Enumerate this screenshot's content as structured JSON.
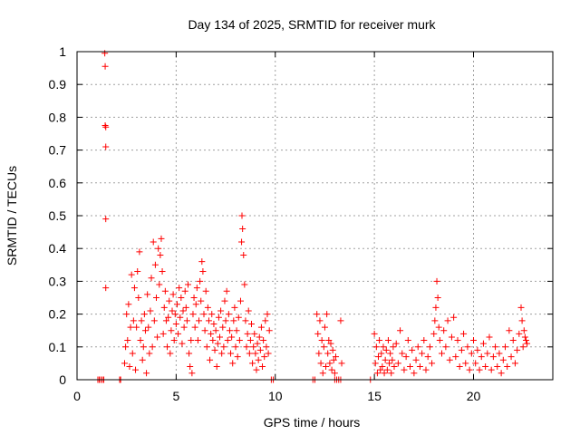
{
  "chart_data": {
    "type": "scatter",
    "title": "Day 134 of 2025, SRMTID for receiver murk",
    "xlabel": "GPS time / hours",
    "ylabel": "SRMTID / TECUs",
    "xlim": [
      0,
      24
    ],
    "ylim": [
      0,
      1
    ],
    "xticks": [
      0,
      5,
      10,
      15,
      20
    ],
    "yticks": [
      0,
      0.1,
      0.2,
      0.3,
      0.4,
      0.5,
      0.6,
      0.7,
      0.8,
      0.9,
      1
    ],
    "grid": true,
    "marker": "plus",
    "series": [
      {
        "name": "SRMTID",
        "color": "#ff0000",
        "points": [
          [
            1.05,
            0.0
          ],
          [
            1.12,
            0.0
          ],
          [
            1.2,
            0.0
          ],
          [
            1.28,
            0.0
          ],
          [
            1.35,
            0.0
          ],
          [
            1.4,
            0.995
          ],
          [
            1.42,
            0.955
          ],
          [
            1.42,
            0.775
          ],
          [
            1.45,
            0.77
          ],
          [
            1.45,
            0.71
          ],
          [
            1.45,
            0.49
          ],
          [
            1.45,
            0.28
          ],
          [
            2.15,
            0.0
          ],
          [
            2.2,
            0.0
          ],
          [
            2.4,
            0.05
          ],
          [
            2.45,
            0.1
          ],
          [
            2.5,
            0.2
          ],
          [
            2.55,
            0.12
          ],
          [
            2.6,
            0.23
          ],
          [
            2.65,
            0.04
          ],
          [
            2.7,
            0.16
          ],
          [
            2.75,
            0.32
          ],
          [
            2.8,
            0.08
          ],
          [
            2.85,
            0.18
          ],
          [
            2.9,
            0.28
          ],
          [
            2.95,
            0.03
          ],
          [
            3.0,
            0.16
          ],
          [
            3.05,
            0.33
          ],
          [
            3.1,
            0.25
          ],
          [
            3.15,
            0.39
          ],
          [
            3.2,
            0.12
          ],
          [
            3.25,
            0.18
          ],
          [
            3.3,
            0.06
          ],
          [
            3.35,
            0.1
          ],
          [
            3.4,
            0.2
          ],
          [
            3.45,
            0.15
          ],
          [
            3.5,
            0.02
          ],
          [
            3.55,
            0.26
          ],
          [
            3.6,
            0.16
          ],
          [
            3.65,
            0.08
          ],
          [
            3.7,
            0.21
          ],
          [
            3.75,
            0.31
          ],
          [
            3.8,
            0.1
          ],
          [
            3.85,
            0.42
          ],
          [
            3.9,
            0.18
          ],
          [
            3.95,
            0.35
          ],
          [
            4.0,
            0.25
          ],
          [
            4.05,
            0.13
          ],
          [
            4.1,
            0.4
          ],
          [
            4.15,
            0.29
          ],
          [
            4.2,
            0.38
          ],
          [
            4.25,
            0.43
          ],
          [
            4.3,
            0.33
          ],
          [
            4.35,
            0.14
          ],
          [
            4.4,
            0.22
          ],
          [
            4.45,
            0.27
          ],
          [
            4.5,
            0.18
          ],
          [
            4.55,
            0.1
          ],
          [
            4.6,
            0.19
          ],
          [
            4.65,
            0.24
          ],
          [
            4.7,
            0.08
          ],
          [
            4.75,
            0.15
          ],
          [
            4.8,
            0.21
          ],
          [
            4.85,
            0.26
          ],
          [
            4.9,
            0.12
          ],
          [
            4.95,
            0.2
          ],
          [
            5.0,
            0.17
          ],
          [
            5.05,
            0.23
          ],
          [
            5.1,
            0.14
          ],
          [
            5.15,
            0.28
          ],
          [
            5.2,
            0.19
          ],
          [
            5.25,
            0.25
          ],
          [
            5.3,
            0.11
          ],
          [
            5.35,
            0.21
          ],
          [
            5.4,
            0.16
          ],
          [
            5.45,
            0.27
          ],
          [
            5.5,
            0.22
          ],
          [
            5.55,
            0.18
          ],
          [
            5.6,
            0.29
          ],
          [
            5.65,
            0.08
          ],
          [
            5.7,
            0.04
          ],
          [
            5.75,
            0.12
          ],
          [
            5.8,
            0.02
          ],
          [
            5.85,
            0.2
          ],
          [
            5.9,
            0.25
          ],
          [
            5.95,
            0.16
          ],
          [
            6.0,
            0.23
          ],
          [
            6.05,
            0.28
          ],
          [
            6.1,
            0.12
          ],
          [
            6.15,
            0.18
          ],
          [
            6.2,
            0.3
          ],
          [
            6.25,
            0.24
          ],
          [
            6.3,
            0.36
          ],
          [
            6.35,
            0.33
          ],
          [
            6.4,
            0.2
          ],
          [
            6.45,
            0.15
          ],
          [
            6.5,
            0.27
          ],
          [
            6.55,
            0.1
          ],
          [
            6.6,
            0.22
          ],
          [
            6.65,
            0.18
          ],
          [
            6.7,
            0.06
          ],
          [
            6.75,
            0.14
          ],
          [
            6.8,
            0.2
          ],
          [
            6.85,
            0.12
          ],
          [
            6.9,
            0.17
          ],
          [
            6.95,
            0.09
          ],
          [
            7.0,
            0.15
          ],
          [
            7.05,
            0.04
          ],
          [
            7.1,
            0.11
          ],
          [
            7.15,
            0.19
          ],
          [
            7.2,
            0.13
          ],
          [
            7.25,
            0.21
          ],
          [
            7.3,
            0.08
          ],
          [
            7.35,
            0.16
          ],
          [
            7.4,
            0.1
          ],
          [
            7.45,
            0.24
          ],
          [
            7.5,
            0.18
          ],
          [
            7.55,
            0.27
          ],
          [
            7.6,
            0.12
          ],
          [
            7.65,
            0.2
          ],
          [
            7.7,
            0.15
          ],
          [
            7.75,
            0.08
          ],
          [
            7.8,
            0.13
          ],
          [
            7.85,
            0.05
          ],
          [
            7.9,
            0.18
          ],
          [
            7.95,
            0.22
          ],
          [
            8.0,
            0.1
          ],
          [
            8.05,
            0.15
          ],
          [
            8.1,
            0.07
          ],
          [
            8.15,
            0.19
          ],
          [
            8.2,
            0.12
          ],
          [
            8.25,
            0.24
          ],
          [
            8.3,
            0.42
          ],
          [
            8.32,
            0.5
          ],
          [
            8.35,
            0.46
          ],
          [
            8.4,
            0.38
          ],
          [
            8.45,
            0.29
          ],
          [
            8.5,
            0.18
          ],
          [
            8.55,
            0.1
          ],
          [
            8.6,
            0.14
          ],
          [
            8.65,
            0.21
          ],
          [
            8.7,
            0.08
          ],
          [
            8.75,
            0.12
          ],
          [
            8.8,
            0.17
          ],
          [
            8.85,
            0.05
          ],
          [
            8.9,
            0.1
          ],
          [
            8.95,
            0.14
          ],
          [
            9.0,
            0.08
          ],
          [
            9.05,
            0.03
          ],
          [
            9.1,
            0.11
          ],
          [
            9.15,
            0.06
          ],
          [
            9.2,
            0.13
          ],
          [
            9.25,
            0.09
          ],
          [
            9.3,
            0.16
          ],
          [
            9.35,
            0.04
          ],
          [
            9.4,
            0.12
          ],
          [
            9.45,
            0.07
          ],
          [
            9.5,
            0.18
          ],
          [
            9.55,
            0.1
          ],
          [
            9.6,
            0.2
          ],
          [
            9.65,
            0.08
          ],
          [
            9.7,
            0.15
          ],
          [
            9.8,
            0.0
          ],
          [
            9.9,
            0.0
          ],
          [
            11.9,
            0.0
          ],
          [
            12.0,
            0.0
          ],
          [
            12.1,
            0.2
          ],
          [
            12.15,
            0.14
          ],
          [
            12.2,
            0.08
          ],
          [
            12.25,
            0.18
          ],
          [
            12.3,
            0.05
          ],
          [
            12.35,
            0.12
          ],
          [
            12.4,
            0.02
          ],
          [
            12.45,
            0.1
          ],
          [
            12.5,
            0.16
          ],
          [
            12.55,
            0.04
          ],
          [
            12.6,
            0.2
          ],
          [
            12.65,
            0.08
          ],
          [
            12.7,
            0.12
          ],
          [
            12.75,
            0.05
          ],
          [
            12.8,
            0.11
          ],
          [
            12.85,
            0.03
          ],
          [
            12.9,
            0.09
          ],
          [
            12.95,
            0.06
          ],
          [
            13.0,
            0.02
          ],
          [
            13.05,
            0.07
          ],
          [
            13.0,
            0.0
          ],
          [
            13.1,
            0.0
          ],
          [
            13.2,
            0.0
          ],
          [
            13.3,
            0.0
          ],
          [
            13.3,
            0.18
          ],
          [
            13.35,
            0.05
          ],
          [
            14.8,
            0.0
          ],
          [
            15.0,
            0.14
          ],
          [
            15.05,
            0.05
          ],
          [
            15.1,
            0.1
          ],
          [
            15.15,
            0.02
          ],
          [
            15.2,
            0.07
          ],
          [
            15.25,
            0.12
          ],
          [
            15.3,
            0.03
          ],
          [
            15.35,
            0.08
          ],
          [
            15.4,
            0.04
          ],
          [
            15.45,
            0.1
          ],
          [
            15.5,
            0.02
          ],
          [
            15.55,
            0.06
          ],
          [
            15.6,
            0.09
          ],
          [
            15.65,
            0.03
          ],
          [
            15.7,
            0.12
          ],
          [
            15.75,
            0.05
          ],
          [
            15.8,
            0.08
          ],
          [
            15.85,
            0.02
          ],
          [
            15.9,
            0.06
          ],
          [
            15.95,
            0.1
          ],
          [
            16.0,
            0.04
          ],
          [
            16.1,
            0.11
          ],
          [
            16.2,
            0.05
          ],
          [
            16.3,
            0.15
          ],
          [
            16.4,
            0.08
          ],
          [
            16.5,
            0.03
          ],
          [
            16.6,
            0.07
          ],
          [
            16.7,
            0.12
          ],
          [
            16.8,
            0.04
          ],
          [
            16.9,
            0.09
          ],
          [
            17.0,
            0.02
          ],
          [
            17.1,
            0.06
          ],
          [
            17.2,
            0.1
          ],
          [
            17.3,
            0.04
          ],
          [
            17.4,
            0.08
          ],
          [
            17.5,
            0.12
          ],
          [
            17.6,
            0.03
          ],
          [
            17.7,
            0.07
          ],
          [
            17.8,
            0.1
          ],
          [
            17.9,
            0.05
          ],
          [
            18.0,
            0.14
          ],
          [
            18.05,
            0.18
          ],
          [
            18.1,
            0.22
          ],
          [
            18.15,
            0.3
          ],
          [
            18.2,
            0.25
          ],
          [
            18.25,
            0.16
          ],
          [
            18.3,
            0.12
          ],
          [
            18.4,
            0.08
          ],
          [
            18.5,
            0.15
          ],
          [
            18.6,
            0.1
          ],
          [
            18.7,
            0.18
          ],
          [
            18.8,
            0.06
          ],
          [
            18.9,
            0.13
          ],
          [
            19.0,
            0.19
          ],
          [
            19.1,
            0.07
          ],
          [
            19.2,
            0.12
          ],
          [
            19.3,
            0.04
          ],
          [
            19.4,
            0.09
          ],
          [
            19.5,
            0.14
          ],
          [
            19.6,
            0.05
          ],
          [
            19.7,
            0.1
          ],
          [
            19.8,
            0.03
          ],
          [
            19.9,
            0.08
          ],
          [
            20.0,
            0.12
          ],
          [
            20.1,
            0.05
          ],
          [
            20.2,
            0.09
          ],
          [
            20.3,
            0.03
          ],
          [
            20.4,
            0.07
          ],
          [
            20.5,
            0.11
          ],
          [
            20.6,
            0.04
          ],
          [
            20.7,
            0.08
          ],
          [
            20.8,
            0.13
          ],
          [
            20.9,
            0.03
          ],
          [
            21.0,
            0.07
          ],
          [
            21.1,
            0.1
          ],
          [
            21.2,
            0.04
          ],
          [
            21.3,
            0.08
          ],
          [
            21.4,
            0.02
          ],
          [
            21.5,
            0.06
          ],
          [
            21.6,
            0.1
          ],
          [
            21.7,
            0.04
          ],
          [
            21.8,
            0.15
          ],
          [
            21.9,
            0.07
          ],
          [
            22.0,
            0.12
          ],
          [
            22.1,
            0.05
          ],
          [
            22.2,
            0.09
          ],
          [
            22.3,
            0.14
          ],
          [
            22.4,
            0.22
          ],
          [
            22.45,
            0.18
          ],
          [
            22.5,
            0.1
          ],
          [
            22.55,
            0.15
          ],
          [
            22.6,
            0.13
          ],
          [
            22.65,
            0.12
          ],
          [
            22.7,
            0.11
          ]
        ]
      }
    ]
  }
}
